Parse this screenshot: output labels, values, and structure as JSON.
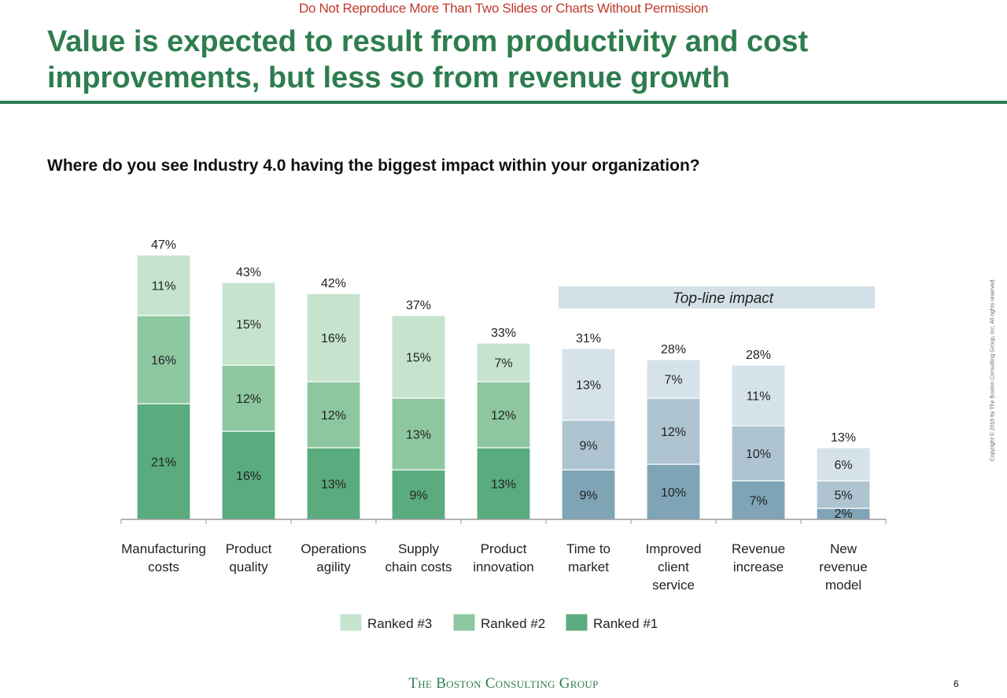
{
  "notice": "Do Not Reproduce More Than Two Slides or Charts Without Permission",
  "title": "Value is expected to result from productivity and cost improvements, but less so from revenue growth",
  "question": "Where do you see Industry 4.0 having the biggest impact within your organization?",
  "footer": {
    "logo": "The Boston Consulting Group",
    "page_number": "6",
    "copyright": "Copyright © 2016 by The Boston Consulting Group, Inc. All rights reserved."
  },
  "chart_data": {
    "type": "bar",
    "stacked": true,
    "categories": [
      [
        "Manufacturing",
        "costs"
      ],
      [
        "Product",
        "quality"
      ],
      [
        "Operations",
        "agility"
      ],
      [
        "Supply",
        "chain costs"
      ],
      [
        "Product",
        "innovation"
      ],
      [
        "Time to",
        "market"
      ],
      [
        "Improved",
        "client",
        "service"
      ],
      [
        "Revenue",
        "increase"
      ],
      [
        "New",
        "revenue",
        "model"
      ]
    ],
    "series": [
      {
        "name": "Ranked #1",
        "values": [
          21,
          16,
          13,
          9,
          13,
          9,
          10,
          7,
          2
        ]
      },
      {
        "name": "Ranked #2",
        "values": [
          16,
          12,
          12,
          13,
          12,
          9,
          12,
          10,
          5
        ]
      },
      {
        "name": "Ranked #3",
        "values": [
          11,
          15,
          16,
          15,
          7,
          13,
          7,
          11,
          6
        ]
      }
    ],
    "totals": [
      47,
      43,
      42,
      37,
      33,
      31,
      28,
      28,
      13
    ],
    "legend": [
      "Ranked #3",
      "Ranked #2",
      "Ranked #1"
    ],
    "annotation": {
      "label": "Top-line impact",
      "applies_to": [
        "Time to market",
        "Improved client service",
        "Revenue increase",
        "New revenue model"
      ]
    },
    "colors": {
      "green_rank1": "#5aab7e",
      "green_rank2": "#8dc7a0",
      "green_rank3": "#c6e4cd",
      "blue_rank1": "#7ea4b6",
      "blue_rank2": "#aec5d1",
      "blue_rank3": "#d5e2ea",
      "annotation_band": "#d3e0e7",
      "bar_outline": "#ffffff"
    }
  }
}
